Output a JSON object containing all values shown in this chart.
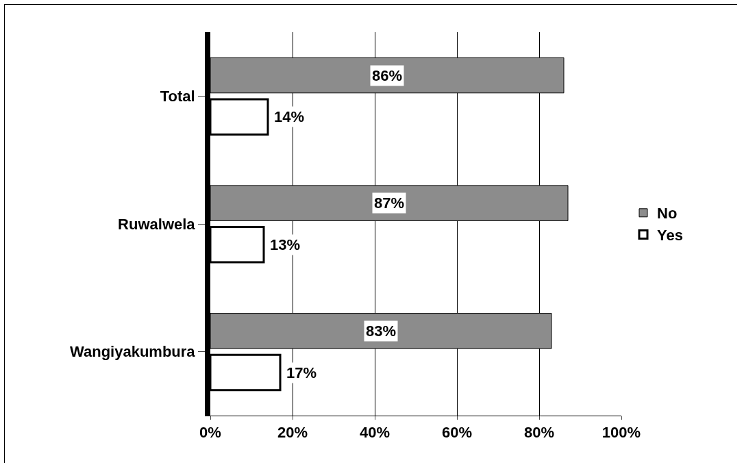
{
  "chart_data": {
    "type": "bar",
    "orientation": "horizontal",
    "categories": [
      "Total",
      "Ruwalwela",
      "Wangiyakumbura"
    ],
    "series": [
      {
        "name": "No",
        "color": "#8c8c8c",
        "values": [
          86,
          87,
          83
        ],
        "value_labels": [
          "86%",
          "87%",
          "83%"
        ]
      },
      {
        "name": "Yes",
        "color": "#ffffff",
        "values": [
          14,
          13,
          17
        ],
        "value_labels": [
          "14%",
          "13%",
          "17%"
        ]
      }
    ],
    "xlim": [
      0,
      100
    ],
    "xticks": [
      {
        "value": 0,
        "label": "0%"
      },
      {
        "value": 20,
        "label": "20%"
      },
      {
        "value": 40,
        "label": "40%"
      },
      {
        "value": 60,
        "label": "60%"
      },
      {
        "value": 80,
        "label": "80%"
      },
      {
        "value": 100,
        "label": "100%"
      }
    ],
    "grid": "x",
    "legend": "right"
  }
}
